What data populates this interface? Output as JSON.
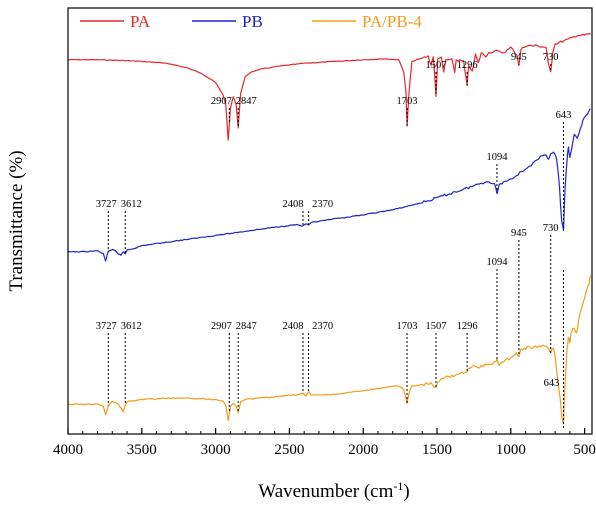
{
  "chart_data": {
    "type": "line",
    "xlabel": "Wavenumber (cm",
    "xlabel_sup": "-1",
    "xlabel_close": ")",
    "ylabel": "Transmittance (%)",
    "xlim": [
      4000,
      450
    ],
    "x_reversed": true,
    "y_ticks_shown": false,
    "x_ticks": [
      "4000",
      "3500",
      "3000",
      "2500",
      "2000",
      "1500",
      "1000",
      "500"
    ],
    "legend_position": "top",
    "series": [
      {
        "name": "PA",
        "color": "#e8262b",
        "points": [
          [
            4000,
            0.17
          ],
          [
            3800,
            0.17
          ],
          [
            3600,
            0.175
          ],
          [
            3400,
            0.185
          ],
          [
            3300,
            0.195
          ],
          [
            3200,
            0.215
          ],
          [
            3100,
            0.245
          ],
          [
            3000,
            0.3
          ],
          [
            2950,
            0.37
          ],
          [
            2930,
            0.43
          ],
          [
            2915,
            0.63
          ],
          [
            2900,
            0.45
          ],
          [
            2880,
            0.38
          ],
          [
            2860,
            0.43
          ],
          [
            2847,
            0.56
          ],
          [
            2830,
            0.36
          ],
          [
            2800,
            0.27
          ],
          [
            2760,
            0.24
          ],
          [
            2700,
            0.225
          ],
          [
            2650,
            0.218
          ],
          [
            2600,
            0.21
          ],
          [
            2400,
            0.19
          ],
          [
            2200,
            0.18
          ],
          [
            2000,
            0.17
          ],
          [
            1850,
            0.165
          ],
          [
            1760,
            0.17
          ],
          [
            1725,
            0.24
          ],
          [
            1710,
            0.36
          ],
          [
            1703,
            0.55
          ],
          [
            1690,
            0.36
          ],
          [
            1670,
            0.18
          ],
          [
            1600,
            0.16
          ],
          [
            1560,
            0.15
          ],
          [
            1540,
            0.2
          ],
          [
            1525,
            0.15
          ],
          [
            1507,
            0.38
          ],
          [
            1495,
            0.16
          ],
          [
            1470,
            0.16
          ],
          [
            1455,
            0.24
          ],
          [
            1440,
            0.17
          ],
          [
            1400,
            0.17
          ],
          [
            1380,
            0.24
          ],
          [
            1370,
            0.17
          ],
          [
            1320,
            0.18
          ],
          [
            1296,
            0.32
          ],
          [
            1285,
            0.2
          ],
          [
            1260,
            0.24
          ],
          [
            1240,
            0.14
          ],
          [
            1220,
            0.19
          ],
          [
            1200,
            0.13
          ],
          [
            1170,
            0.15
          ],
          [
            1150,
            0.13
          ],
          [
            1100,
            0.12
          ],
          [
            1050,
            0.13
          ],
          [
            1000,
            0.1
          ],
          [
            960,
            0.14
          ],
          [
            945,
            0.2
          ],
          [
            930,
            0.11
          ],
          [
            900,
            0.09
          ],
          [
            820,
            0.09
          ],
          [
            760,
            0.1
          ],
          [
            745,
            0.2
          ],
          [
            730,
            0.24
          ],
          [
            715,
            0.12
          ],
          [
            700,
            0.08
          ],
          [
            650,
            0.065
          ],
          [
            600,
            0.05
          ],
          [
            550,
            0.03
          ],
          [
            500,
            0.03
          ],
          [
            460,
            0.02
          ]
        ]
      },
      {
        "name": "PB",
        "color": "#1f24c8",
        "points": [
          [
            4000,
            0.765
          ],
          [
            3900,
            0.765
          ],
          [
            3800,
            0.76
          ],
          [
            3760,
            0.775
          ],
          [
            3745,
            0.81
          ],
          [
            3735,
            0.78
          ],
          [
            3727,
            0.765
          ],
          [
            3700,
            0.755
          ],
          [
            3680,
            0.76
          ],
          [
            3660,
            0.775
          ],
          [
            3640,
            0.78
          ],
          [
            3625,
            0.765
          ],
          [
            3612,
            0.775
          ],
          [
            3600,
            0.755
          ],
          [
            3550,
            0.748
          ],
          [
            3500,
            0.735
          ],
          [
            3400,
            0.725
          ],
          [
            3300,
            0.715
          ],
          [
            3200,
            0.705
          ],
          [
            3100,
            0.695
          ],
          [
            3000,
            0.685
          ],
          [
            2800,
            0.665
          ],
          [
            2600,
            0.645
          ],
          [
            2450,
            0.632
          ],
          [
            2408,
            0.64
          ],
          [
            2390,
            0.628
          ],
          [
            2370,
            0.636
          ],
          [
            2350,
            0.622
          ],
          [
            2200,
            0.605
          ],
          [
            2000,
            0.585
          ],
          [
            1800,
            0.56
          ],
          [
            1600,
            0.525
          ],
          [
            1450,
            0.49
          ],
          [
            1300,
            0.455
          ],
          [
            1200,
            0.43
          ],
          [
            1150,
            0.42
          ],
          [
            1110,
            0.435
          ],
          [
            1094,
            0.48
          ],
          [
            1080,
            0.44
          ],
          [
            1050,
            0.425
          ],
          [
            1000,
            0.41
          ],
          [
            900,
            0.36
          ],
          [
            850,
            0.335
          ],
          [
            800,
            0.305
          ],
          [
            760,
            0.29
          ],
          [
            745,
            0.31
          ],
          [
            730,
            0.29
          ],
          [
            710,
            0.28
          ],
          [
            690,
            0.31
          ],
          [
            670,
            0.45
          ],
          [
            655,
            0.62
          ],
          [
            643,
            0.66
          ],
          [
            632,
            0.45
          ],
          [
            620,
            0.33
          ],
          [
            610,
            0.25
          ],
          [
            600,
            0.31
          ],
          [
            590,
            0.27
          ],
          [
            570,
            0.19
          ],
          [
            550,
            0.21
          ],
          [
            530,
            0.17
          ],
          [
            510,
            0.12
          ],
          [
            490,
            0.1
          ],
          [
            470,
            0.08
          ],
          [
            460,
            0.07
          ]
        ]
      },
      {
        "name": "PA/PB-4",
        "color": "#f59b1b",
        "points": [
          [
            4000,
            0.895
          ],
          [
            3900,
            0.895
          ],
          [
            3800,
            0.895
          ],
          [
            3760,
            0.905
          ],
          [
            3745,
            0.935
          ],
          [
            3735,
            0.92
          ],
          [
            3727,
            0.9
          ],
          [
            3700,
            0.885
          ],
          [
            3680,
            0.885
          ],
          [
            3660,
            0.895
          ],
          [
            3640,
            0.91
          ],
          [
            3625,
            0.925
          ],
          [
            3612,
            0.895
          ],
          [
            3600,
            0.885
          ],
          [
            3500,
            0.875
          ],
          [
            3300,
            0.87
          ],
          [
            3100,
            0.872
          ],
          [
            3000,
            0.876
          ],
          [
            2950,
            0.88
          ],
          [
            2930,
            0.9
          ],
          [
            2915,
            0.96
          ],
          [
            2900,
            0.905
          ],
          [
            2880,
            0.89
          ],
          [
            2860,
            0.905
          ],
          [
            2847,
            0.93
          ],
          [
            2830,
            0.885
          ],
          [
            2800,
            0.875
          ],
          [
            2600,
            0.865
          ],
          [
            2450,
            0.856
          ],
          [
            2408,
            0.85
          ],
          [
            2390,
            0.862
          ],
          [
            2370,
            0.845
          ],
          [
            2350,
            0.858
          ],
          [
            2200,
            0.855
          ],
          [
            2000,
            0.84
          ],
          [
            1850,
            0.826
          ],
          [
            1760,
            0.82
          ],
          [
            1725,
            0.835
          ],
          [
            1710,
            0.87
          ],
          [
            1703,
            0.89
          ],
          [
            1690,
            0.85
          ],
          [
            1670,
            0.82
          ],
          [
            1600,
            0.815
          ],
          [
            1540,
            0.81
          ],
          [
            1507,
            0.83
          ],
          [
            1495,
            0.81
          ],
          [
            1470,
            0.79
          ],
          [
            1400,
            0.78
          ],
          [
            1320,
            0.765
          ],
          [
            1296,
            0.76
          ],
          [
            1285,
            0.745
          ],
          [
            1200,
            0.74
          ],
          [
            1100,
            0.725
          ],
          [
            1094,
            0.71
          ],
          [
            1080,
            0.73
          ],
          [
            1000,
            0.705
          ],
          [
            960,
            0.69
          ],
          [
            945,
            0.7
          ],
          [
            930,
            0.67
          ],
          [
            900,
            0.665
          ],
          [
            820,
            0.66
          ],
          [
            760,
            0.655
          ],
          [
            745,
            0.67
          ],
          [
            730,
            0.685
          ],
          [
            715,
            0.66
          ],
          [
            700,
            0.7
          ],
          [
            680,
            0.8
          ],
          [
            665,
            0.88
          ],
          [
            655,
            0.94
          ],
          [
            643,
            0.97
          ],
          [
            632,
            0.8
          ],
          [
            620,
            0.68
          ],
          [
            610,
            0.62
          ],
          [
            600,
            0.64
          ],
          [
            590,
            0.6
          ],
          [
            570,
            0.58
          ],
          [
            555,
            0.61
          ],
          [
            540,
            0.55
          ],
          [
            520,
            0.5
          ],
          [
            500,
            0.46
          ],
          [
            470,
            0.4
          ],
          [
            460,
            0.37
          ]
        ]
      }
    ],
    "annotations": [
      {
        "label": "2907",
        "series": "PA",
        "x": 2907
      },
      {
        "label": "2847",
        "series": "PA",
        "x": 2847
      },
      {
        "label": "1703",
        "series": "PA",
        "x": 1703
      },
      {
        "label": "1507",
        "series": "PA",
        "x": 1507
      },
      {
        "label": "1296",
        "series": "PA",
        "x": 1296
      },
      {
        "label": "945",
        "series": "PA",
        "x": 945
      },
      {
        "label": "730",
        "series": "PA",
        "x": 730
      },
      {
        "label": "3727",
        "series": "PB",
        "x": 3727
      },
      {
        "label": "3612",
        "series": "PB",
        "x": 3612
      },
      {
        "label": "2408",
        "series": "PB",
        "x": 2408
      },
      {
        "label": "2370",
        "series": "PB",
        "x": 2370
      },
      {
        "label": "1094",
        "series": "PB",
        "x": 1094
      },
      {
        "label": "643",
        "series": "PB",
        "x": 643
      },
      {
        "label": "3727",
        "series": "PA/PB-4",
        "x": 3727
      },
      {
        "label": "3612",
        "series": "PA/PB-4",
        "x": 3612
      },
      {
        "label": "2907",
        "series": "PA/PB-4",
        "x": 2907
      },
      {
        "label": "2847",
        "series": "PA/PB-4",
        "x": 2847
      },
      {
        "label": "2408",
        "series": "PA/PB-4",
        "x": 2408
      },
      {
        "label": "2370",
        "series": "PA/PB-4",
        "x": 2370
      },
      {
        "label": "1703",
        "series": "PA/PB-4",
        "x": 1703
      },
      {
        "label": "1507",
        "series": "PA/PB-4",
        "x": 1507
      },
      {
        "label": "1296",
        "series": "PA/PB-4",
        "x": 1296
      },
      {
        "label": "1094",
        "series": "PA/PB-4",
        "x": 1094
      },
      {
        "label": "945",
        "series": "PA/PB-4",
        "x": 945
      },
      {
        "label": "730",
        "series": "PA/PB-4",
        "x": 730
      },
      {
        "label": "643",
        "series": "PA/PB-4",
        "x": 643
      }
    ]
  }
}
